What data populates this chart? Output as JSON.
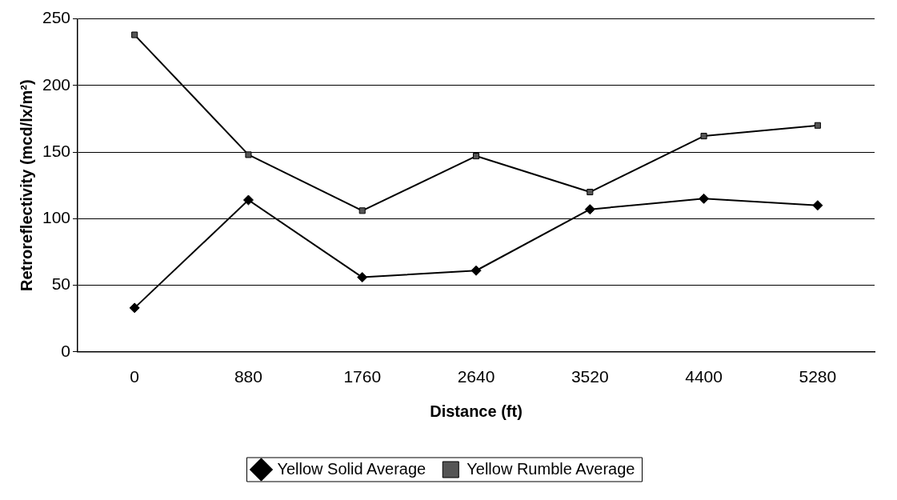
{
  "chart_data": {
    "type": "line",
    "xlabel": "Distance (ft)",
    "ylabel": "Retroreflectivity (mcd/lx/m²)",
    "categories": [
      "0",
      "880",
      "1760",
      "2640",
      "3520",
      "4400",
      "5280"
    ],
    "series": [
      {
        "name": "Yellow Solid Average",
        "color": "#000000",
        "marker": "diamond",
        "values": [
          33,
          114,
          56,
          61,
          107,
          115,
          110
        ]
      },
      {
        "name": "Yellow Rumble Average",
        "color": "#555555",
        "marker": "square",
        "values": [
          238,
          148,
          106,
          147,
          120,
          162,
          170
        ]
      }
    ],
    "ylim": [
      0,
      250
    ],
    "yticks": [
      0,
      50,
      100,
      150,
      200,
      250
    ],
    "grid": "y",
    "legend": "bottom",
    "line_style": "solid"
  }
}
